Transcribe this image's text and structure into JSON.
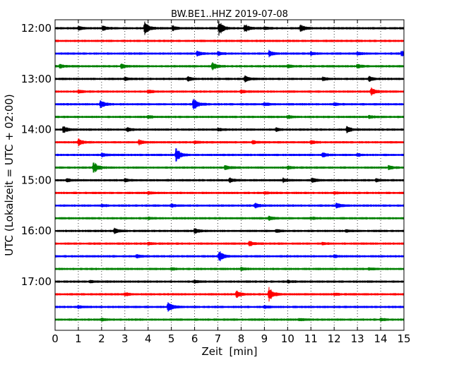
{
  "chart_data": {
    "type": "line",
    "title": "BW.BE1..HHZ 2019-07-08",
    "xlabel": "Zeit  [min]",
    "ylabel": "UTC (Lokalzeit = UTC + 02:00)",
    "xlim": [
      0,
      15
    ],
    "x_ticks": [
      "0",
      "1",
      "2",
      "3",
      "4",
      "5",
      "6",
      "7",
      "8",
      "9",
      "10",
      "11",
      "12",
      "13",
      "14",
      "15"
    ],
    "y_ticks": [
      "12:00",
      "13:00",
      "14:00",
      "15:00",
      "16:00",
      "17:00"
    ],
    "grid": {
      "x": "dotted",
      "y": false
    },
    "trace_colors": [
      "#000000",
      "#ff0000",
      "#0000ff",
      "#008000"
    ],
    "trace_start_times": [
      "12:00",
      "12:15",
      "12:30",
      "12:45",
      "13:00",
      "13:15",
      "13:30",
      "13:45",
      "14:00",
      "14:15",
      "14:30",
      "14:45",
      "15:00",
      "15:15",
      "15:30",
      "15:45",
      "16:00",
      "16:15",
      "16:30",
      "16:45",
      "17:00",
      "17:15",
      "17:30",
      "17:45"
    ],
    "trace_events": [
      [
        [
          3.85,
          1.0
        ],
        [
          7.05,
          1.0
        ],
        [
          10.55,
          0.5
        ],
        [
          8.15,
          0.6
        ],
        [
          2.05,
          0.3
        ],
        [
          5.05,
          0.3
        ],
        [
          1.0,
          0.25
        ],
        [
          9.0,
          0.2
        ]
      ],
      [],
      [
        [
          6.1,
          0.3
        ],
        [
          9.2,
          0.4
        ],
        [
          14.9,
          0.35
        ],
        [
          7.0,
          0.2
        ],
        [
          11.0,
          0.2
        ],
        [
          13.0,
          0.2
        ]
      ],
      [
        [
          6.75,
          0.5
        ],
        [
          2.85,
          0.3
        ],
        [
          0.2,
          0.25
        ],
        [
          13.0,
          0.25
        ],
        [
          10.0,
          0.2
        ]
      ],
      [
        [
          8.15,
          0.4
        ],
        [
          5.7,
          0.3
        ],
        [
          13.5,
          0.3
        ],
        [
          11.5,
          0.2
        ],
        [
          3.0,
          0.2
        ]
      ],
      [
        [
          13.6,
          0.5
        ],
        [
          8.0,
          0.2
        ],
        [
          4.0,
          0.2
        ],
        [
          1.0,
          0.2
        ]
      ],
      [
        [
          5.95,
          1.0
        ],
        [
          1.95,
          0.6
        ],
        [
          9.0,
          0.2
        ],
        [
          12.0,
          0.2
        ]
      ],
      [
        [
          4.0,
          0.2
        ],
        [
          10.0,
          0.2
        ],
        [
          13.5,
          0.2
        ]
      ],
      [
        [
          0.35,
          0.5
        ],
        [
          12.55,
          0.45
        ],
        [
          3.1,
          0.25
        ],
        [
          7.0,
          0.2
        ],
        [
          9.5,
          0.2
        ]
      ],
      [
        [
          1.0,
          0.5
        ],
        [
          3.6,
          0.35
        ],
        [
          6.0,
          0.2
        ],
        [
          8.5,
          0.2
        ],
        [
          11.0,
          0.2
        ]
      ],
      [
        [
          5.2,
          1.0
        ],
        [
          11.5,
          0.3
        ],
        [
          13.0,
          0.2
        ],
        [
          2.0,
          0.25
        ]
      ],
      [
        [
          1.65,
          0.8
        ],
        [
          7.3,
          0.35
        ],
        [
          14.35,
          0.3
        ],
        [
          10.0,
          0.2
        ]
      ],
      [
        [
          0.5,
          0.2
        ],
        [
          7.5,
          0.3
        ],
        [
          11.05,
          0.3
        ],
        [
          9.8,
          0.25
        ],
        [
          13.8,
          0.2
        ],
        [
          3.0,
          0.2
        ]
      ],
      [
        [
          4.0,
          0.15
        ],
        [
          9.0,
          0.15
        ],
        [
          12.0,
          0.15
        ]
      ],
      [
        [
          8.6,
          0.35
        ],
        [
          12.1,
          0.35
        ],
        [
          5.0,
          0.2
        ],
        [
          2.0,
          0.15
        ]
      ],
      [
        [
          9.2,
          0.3
        ],
        [
          4.0,
          0.15
        ],
        [
          11.0,
          0.15
        ]
      ],
      [
        [
          2.55,
          0.35
        ],
        [
          6.0,
          0.35
        ],
        [
          9.5,
          0.2
        ],
        [
          12.5,
          0.15
        ]
      ],
      [
        [
          8.35,
          0.3
        ],
        [
          4.0,
          0.15
        ],
        [
          11.5,
          0.15
        ]
      ],
      [
        [
          7.05,
          0.8
        ],
        [
          3.5,
          0.2
        ],
        [
          12.0,
          0.15
        ]
      ],
      [
        [
          8.0,
          0.2
        ],
        [
          5.0,
          0.15
        ],
        [
          13.5,
          0.15
        ]
      ],
      [
        [
          6.0,
          0.2
        ],
        [
          10.0,
          0.15
        ],
        [
          1.5,
          0.15
        ]
      ],
      [
        [
          9.2,
          1.0
        ],
        [
          7.8,
          0.45
        ],
        [
          3.0,
          0.2
        ],
        [
          12.0,
          0.15
        ]
      ],
      [
        [
          4.85,
          0.9
        ],
        [
          1.0,
          0.15
        ],
        [
          9.0,
          0.15
        ]
      ],
      [
        [
          2.0,
          0.15
        ],
        [
          10.5,
          0.15
        ],
        [
          14.0,
          0.15
        ]
      ]
    ]
  }
}
